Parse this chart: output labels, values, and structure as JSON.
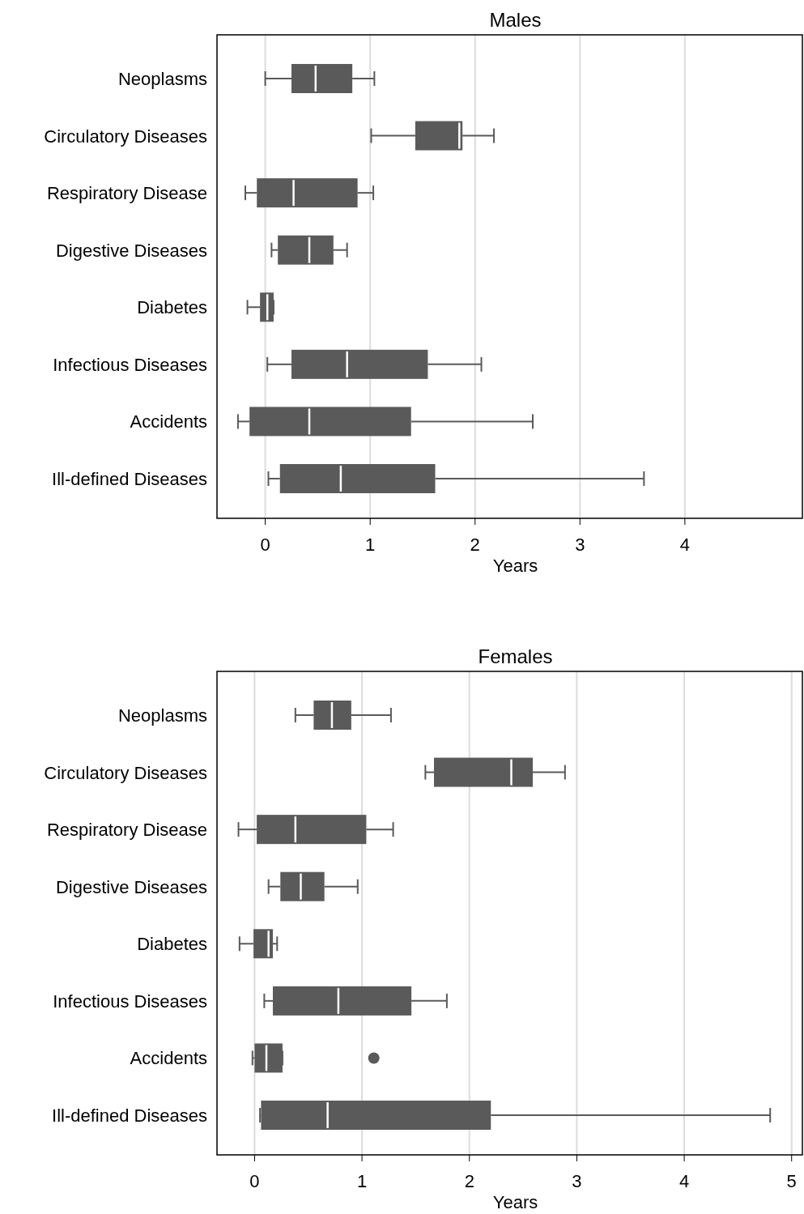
{
  "chart_data": [
    {
      "type": "box",
      "title": "Males",
      "xlabel": "Years",
      "orientation": "horizontal",
      "grid": "x",
      "categories": [
        "Neoplasms",
        "Circulatory Diseases",
        "Respiratory Disease",
        "Digestive Diseases",
        "Diabetes",
        "Infectious Diseases",
        "Accidents",
        "Ill-defined Diseases"
      ],
      "xlim": [
        -0.46,
        5.12
      ],
      "xticks": [
        0,
        1,
        2,
        3,
        4
      ],
      "series": [
        {
          "color": "#5a5a5a",
          "boxes": [
            {
              "low": 0.0,
              "q1": 0.25,
              "median": 0.48,
              "q3": 0.83,
              "high": 1.04
            },
            {
              "low": 1.01,
              "q1": 1.43,
              "median": 1.85,
              "q3": 1.88,
              "high": 2.18
            },
            {
              "low": -0.19,
              "q1": -0.08,
              "median": 0.27,
              "q3": 0.88,
              "high": 1.03
            },
            {
              "low": 0.06,
              "q1": 0.12,
              "median": 0.42,
              "q3": 0.65,
              "high": 0.78
            },
            {
              "low": -0.17,
              "q1": -0.05,
              "median": 0.02,
              "q3": 0.08,
              "high": 0.08
            },
            {
              "low": 0.02,
              "q1": 0.25,
              "median": 0.78,
              "q3": 1.55,
              "high": 2.06
            },
            {
              "low": -0.26,
              "q1": -0.15,
              "median": 0.42,
              "q3": 1.39,
              "high": 2.55
            },
            {
              "low": 0.03,
              "q1": 0.14,
              "median": 0.72,
              "q3": 1.62,
              "high": 3.61
            }
          ]
        }
      ]
    },
    {
      "type": "box",
      "title": "Females",
      "xlabel": "Years",
      "orientation": "horizontal",
      "grid": "x",
      "categories": [
        "Neoplasms",
        "Circulatory Diseases",
        "Respiratory Disease",
        "Digestive Diseases",
        "Diabetes",
        "Infectious Diseases",
        "Accidents",
        "Ill-defined Diseases"
      ],
      "xlim": [
        -0.35,
        5.1
      ],
      "xticks": [
        0,
        1,
        2,
        3,
        4,
        5
      ],
      "series": [
        {
          "color": "#5a5a5a",
          "boxes": [
            {
              "low": 0.38,
              "q1": 0.55,
              "median": 0.72,
              "q3": 0.9,
              "high": 1.27
            },
            {
              "low": 1.59,
              "q1": 1.67,
              "median": 2.39,
              "q3": 2.59,
              "high": 2.89
            },
            {
              "low": -0.15,
              "q1": 0.02,
              "median": 0.38,
              "q3": 1.04,
              "high": 1.29
            },
            {
              "low": 0.13,
              "q1": 0.24,
              "median": 0.43,
              "q3": 0.65,
              "high": 0.96
            },
            {
              "low": -0.14,
              "q1": -0.01,
              "median": 0.13,
              "q3": 0.17,
              "high": 0.21
            },
            {
              "low": 0.09,
              "q1": 0.17,
              "median": 0.78,
              "q3": 1.46,
              "high": 1.79
            },
            {
              "low": -0.02,
              "q1": 0.0,
              "median": 0.11,
              "q3": 0.26,
              "high": 0.26,
              "outliers": [
                1.11
              ]
            },
            {
              "low": 0.05,
              "q1": 0.06,
              "median": 0.68,
              "q3": 2.2,
              "high": 4.8
            }
          ]
        }
      ]
    }
  ]
}
